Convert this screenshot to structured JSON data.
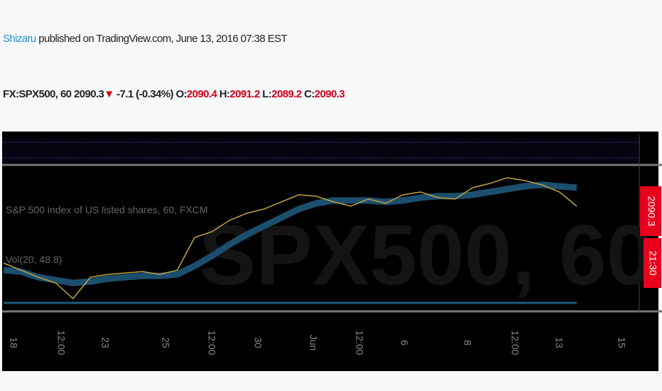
{
  "header": {
    "author": "Shizaru",
    "published": "published on TradingView.com, June 13, 2016 07:38 EST"
  },
  "ticker": {
    "symbol": "FX:SPX500, 60",
    "last": "2090.3",
    "change": "-7.1 (-0.34%)",
    "o_label": "O:",
    "o": "2090.4",
    "h_label": "H:",
    "h": "2091.2",
    "l_label": "L:",
    "l": "2089.2",
    "c_label": "C:",
    "c": "2090.3"
  },
  "chart": {
    "legend": "S&P 500 index of US listed shares, 60, FXCM",
    "volume_label": "Vol(20, 48.8)",
    "watermark": "SPX500, 60",
    "price_tag": "2090.3",
    "time_tag": "21:30",
    "x_labels": [
      "18",
      "12:00",
      "23",
      "25",
      "12:00",
      "30",
      "Jun",
      "12:00",
      "6",
      "8",
      "12:00",
      "13",
      "15"
    ],
    "ylim": [
      2020,
      2115
    ],
    "price": [
      2050,
      2045,
      2040,
      2036,
      2025,
      2040,
      2042,
      2043,
      2044,
      2042,
      2045,
      2068,
      2072,
      2080,
      2085,
      2088,
      2093,
      2098,
      2097,
      2093,
      2090,
      2095,
      2092,
      2098,
      2100,
      2096,
      2095,
      2103,
      2106,
      2110,
      2108,
      2105,
      2100,
      2090
    ],
    "ma": [
      2045,
      2044,
      2040,
      2038,
      2036,
      2037,
      2039,
      2040,
      2041,
      2041,
      2042,
      2048,
      2055,
      2063,
      2070,
      2076,
      2082,
      2088,
      2092,
      2094,
      2094,
      2094,
      2093,
      2094,
      2096,
      2097,
      2097,
      2098,
      2100,
      2102,
      2104,
      2105,
      2104,
      2103
    ]
  }
}
